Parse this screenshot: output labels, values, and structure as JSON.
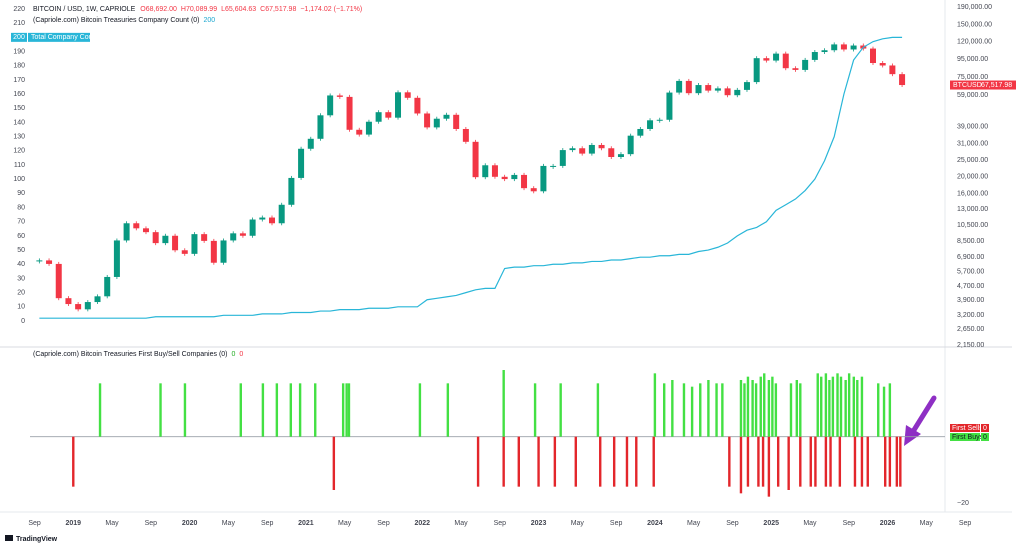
{
  "chart_data": [
    {
      "type": "candlestick",
      "title": "BITCOIN / USD, 1W, CAPRIOLE",
      "ohlc": [
        "O68,692.00",
        "H70,089.99",
        "L65,604.63",
        "C67,517.98",
        "−1,174.02 (−1.71%)"
      ],
      "subtitle": "(Capriole.com) Bitcoin Treasuries Company Count (0)",
      "x": [
        "2018-09",
        "2018-10",
        "2018-11",
        "2018-12",
        "2019-01",
        "2019-02",
        "2019-03",
        "2019-04",
        "2019-05",
        "2019-06",
        "2019-07",
        "2019-08",
        "2019-09",
        "2019-10",
        "2019-11",
        "2019-12",
        "2020-01",
        "2020-02",
        "2020-03",
        "2020-04",
        "2020-05",
        "2020-06",
        "2020-07",
        "2020-08",
        "2020-09",
        "2020-10",
        "2020-11",
        "2020-12",
        "2021-01",
        "2021-02",
        "2021-03",
        "2021-04",
        "2021-05",
        "2021-06",
        "2021-07",
        "2021-08",
        "2021-09",
        "2021-10",
        "2021-11",
        "2021-12",
        "2022-01",
        "2022-02",
        "2022-03",
        "2022-04",
        "2022-05",
        "2022-06",
        "2022-07",
        "2022-08",
        "2022-09",
        "2022-10",
        "2022-11",
        "2022-12",
        "2023-01",
        "2023-02",
        "2023-03",
        "2023-04",
        "2023-05",
        "2023-06",
        "2023-07",
        "2023-08",
        "2023-09",
        "2023-10",
        "2023-11",
        "2023-12",
        "2024-01",
        "2024-02",
        "2024-03",
        "2024-04",
        "2024-05",
        "2024-06",
        "2024-07",
        "2024-08",
        "2024-09",
        "2024-10",
        "2024-11",
        "2024-12",
        "2025-01",
        "2025-02",
        "2025-03",
        "2025-04",
        "2025-05",
        "2025-06",
        "2025-07",
        "2025-08",
        "2025-09",
        "2025-10",
        "2025-11",
        "2025-12",
        "2026-01",
        "2026-02"
      ],
      "series": [
        {
          "name": "BTCUSD",
          "up_color": "#089981",
          "down_color": "#f23645",
          "last_value_label": "67,517.98",
          "values": [
            6600,
            6300,
            4000,
            3700,
            3450,
            3800,
            4100,
            5300,
            8600,
            10800,
            10100,
            9600,
            8300,
            9150,
            7550,
            7200,
            9350,
            8550,
            6400,
            8600,
            9450,
            9150,
            11350,
            11650,
            10800,
            13800,
            19700,
            29000,
            33100,
            45200,
            58800,
            57700,
            37300,
            35000,
            41500,
            47100,
            43800,
            61300,
            57000,
            46300,
            38500,
            43200,
            45500,
            37700,
            31800,
            19900,
            23300,
            20000,
            19400,
            20500,
            17200,
            16500,
            23100,
            23100,
            28500,
            29200,
            27200,
            30500,
            29200,
            26000,
            27000,
            34500,
            37700,
            42300,
            42600,
            61100,
            71300,
            60600,
            67500,
            62700,
            64600,
            59000,
            63300,
            70200,
            96400,
            93400,
            102400,
            84400,
            82500,
            94200,
            104600,
            107100,
            115700,
            108200,
            114000,
            109500,
            90400,
            87500,
            78000,
            67517.98
          ]
        },
        {
          "name": "Total Company Count",
          "color": "#29b6d8",
          "axis": "y2",
          "values": [
            2,
            2,
            2,
            2,
            2,
            2,
            2,
            2,
            2,
            2,
            2,
            2,
            3,
            3,
            3,
            3,
            3,
            3,
            3,
            4,
            4,
            4,
            4,
            5,
            5,
            5,
            6,
            6,
            6,
            7,
            7,
            8,
            8,
            8,
            9,
            9,
            9,
            10,
            10,
            10,
            15,
            16,
            17,
            18,
            20,
            22,
            23,
            23,
            37,
            38,
            38,
            39,
            39,
            40,
            40,
            41,
            41,
            42,
            42,
            43,
            43,
            44,
            45,
            45,
            46,
            46,
            47,
            47,
            49,
            50,
            52,
            55,
            60,
            64,
            66,
            70,
            78,
            82,
            86,
            92,
            100,
            113,
            130,
            160,
            184,
            193,
            197,
            199,
            200,
            200
          ]
        }
      ],
      "xlim": [
        2018.37,
        2027.07
      ],
      "yscale": "log",
      "ylim": [
        2150,
        190000
      ],
      "yticks": [
        {
          "value": 190000,
          "label": "190,000.00"
        },
        {
          "value": 150000,
          "label": "150,000.00"
        },
        {
          "value": 120000,
          "label": "120,000.00"
        },
        {
          "value": 95000,
          "label": "95,000.00"
        },
        {
          "value": 75000,
          "label": "75,000.00"
        },
        {
          "value": 59000,
          "label": "59,000.00"
        },
        {
          "value": 39000,
          "label": "39,000.00"
        },
        {
          "value": 31000,
          "label": "31,000.00"
        },
        {
          "value": 25000,
          "label": "25,000.00"
        },
        {
          "value": 20000,
          "label": "20,000.00"
        },
        {
          "value": 16000,
          "label": "16,000.00"
        },
        {
          "value": 13000,
          "label": "13,000.00"
        },
        {
          "value": 10500,
          "label": "10,500.00"
        },
        {
          "value": 8500,
          "label": "8,500.00"
        },
        {
          "value": 6900,
          "label": "6,900.00"
        },
        {
          "value": 5700,
          "label": "5,700.00"
        },
        {
          "value": 4700,
          "label": "4,700.00"
        },
        {
          "value": 3900,
          "label": "3,900.00"
        },
        {
          "value": 3200,
          "label": "3,200.00"
        },
        {
          "value": 2650,
          "label": "2,650.00"
        },
        {
          "value": 2150,
          "label": "2,150.00"
        }
      ],
      "y2lim": [
        0,
        220
      ],
      "y2ticks": [
        0,
        10,
        20,
        30,
        40,
        50,
        60,
        70,
        80,
        90,
        100,
        110,
        120,
        130,
        140,
        150,
        160,
        170,
        180,
        190,
        200,
        210,
        220
      ]
    },
    {
      "type": "bar",
      "title": "(Capriole.com) Bitcoin Treasuries First Buy/Sell Companies (0)",
      "series": [
        {
          "name": "First Sells",
          "color": "#e3262b",
          "legend_value": 0,
          "x": [
            2019.0,
            2021.24,
            2022.48,
            2022.7,
            2022.83,
            2023.0,
            2023.14,
            2023.32,
            2023.53,
            2023.65,
            2023.76,
            2023.84,
            2023.99,
            2024.64,
            2024.74,
            2024.8,
            2024.89,
            2024.93,
            2024.98,
            2025.06,
            2025.15,
            2025.25,
            2025.34,
            2025.38,
            2025.47,
            2025.51,
            2025.59,
            2025.72,
            2025.78,
            2025.83,
            2025.98,
            2026.02,
            2026.08,
            2026.11
          ],
          "values": [
            -15,
            -16,
            -15,
            -15,
            -15,
            -15,
            -15,
            -15,
            -15,
            -15,
            -15,
            -15,
            -15,
            -15,
            -17,
            -15,
            -15,
            -15,
            -18,
            -15,
            -16,
            -15,
            -15,
            -15,
            -15,
            -15,
            -15,
            -15,
            -15,
            -15,
            -15,
            -15,
            -15,
            -15
          ]
        },
        {
          "name": "First Buys",
          "color": "#43e043",
          "legend_value": 0,
          "x": [
            2019.23,
            2019.75,
            2019.96,
            2020.44,
            2020.63,
            2020.75,
            2020.87,
            2020.95,
            2021.08,
            2021.32,
            2021.35,
            2021.37,
            2021.98,
            2022.22,
            2022.7,
            2022.97,
            2023.19,
            2023.51,
            2024.0,
            2024.08,
            2024.15,
            2024.25,
            2024.32,
            2024.39,
            2024.46,
            2024.53,
            2024.58,
            2024.74,
            2024.77,
            2024.8,
            2024.84,
            2024.87,
            2024.91,
            2024.94,
            2024.98,
            2025.01,
            2025.04,
            2025.17,
            2025.22,
            2025.25,
            2025.4,
            2025.43,
            2025.47,
            2025.5,
            2025.53,
            2025.57,
            2025.6,
            2025.64,
            2025.67,
            2025.71,
            2025.74,
            2025.78,
            2025.92,
            2025.97,
            2026.02
          ],
          "values": [
            16,
            16,
            16,
            16,
            16,
            16,
            16,
            16,
            16,
            16,
            16,
            16,
            16,
            16,
            20,
            16,
            16,
            16,
            19,
            16,
            17,
            16,
            15,
            16,
            17,
            16,
            16,
            17,
            16,
            18,
            17,
            16,
            18,
            19,
            17,
            18,
            16,
            16,
            17,
            16,
            19,
            18,
            19,
            17,
            18,
            19,
            18,
            17,
            19,
            18,
            17,
            18,
            16,
            15,
            16
          ]
        }
      ],
      "xlim": [
        2018.37,
        2027.07
      ],
      "xticks": [
        {
          "value": 2018.667,
          "label": "Sep"
        },
        2019,
        {
          "value": 2019.333,
          "label": "May"
        },
        {
          "value": 2019.667,
          "label": "Sep"
        },
        2020,
        {
          "value": 2020.333,
          "label": "May"
        },
        {
          "value": 2020.667,
          "label": "Sep"
        },
        2021,
        {
          "value": 2021.333,
          "label": "May"
        },
        {
          "value": 2021.667,
          "label": "Sep"
        },
        2022,
        {
          "value": 2022.333,
          "label": "May"
        },
        {
          "value": 2022.667,
          "label": "Sep"
        },
        2023,
        {
          "value": 2023.333,
          "label": "May"
        },
        {
          "value": 2023.667,
          "label": "Sep"
        },
        2024,
        {
          "value": 2024.333,
          "label": "May"
        },
        {
          "value": 2024.667,
          "label": "Sep"
        },
        2025,
        {
          "value": 2025.333,
          "label": "May"
        },
        {
          "value": 2025.667,
          "label": "Sep"
        },
        2026,
        {
          "value": 2026.333,
          "label": "May"
        },
        {
          "value": 2026.667,
          "label": "Sep"
        }
      ],
      "ylim": [
        -22,
        26
      ],
      "yticks": [
        {
          "value": -20,
          "label": "−20"
        }
      ]
    }
  ],
  "footer": "TradingView"
}
